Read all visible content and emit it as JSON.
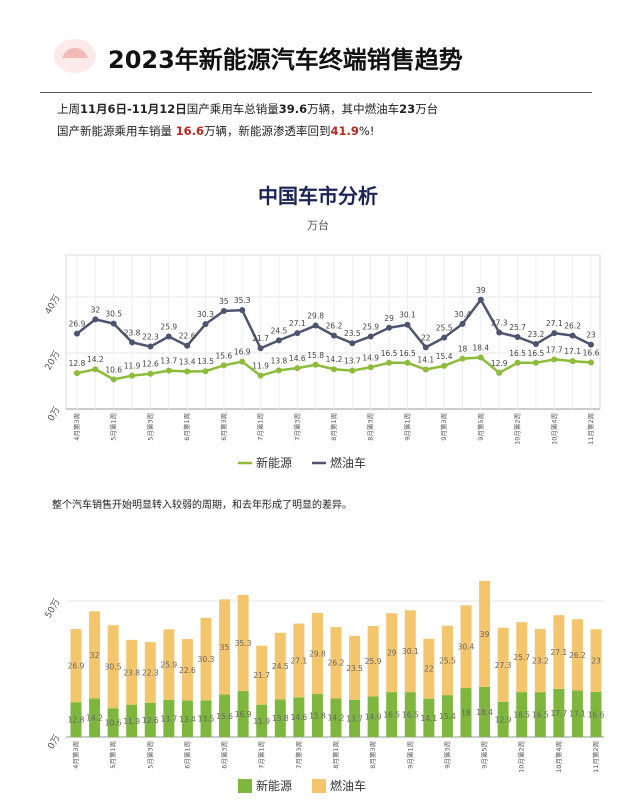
{
  "header": {
    "title": "2023年新能源汽车终端销售趋势"
  },
  "summary": {
    "line1": [
      "上周",
      "11月6日-11月12日",
      "国产乘用车总销量",
      "39.6",
      "万辆，其中燃油车",
      "23",
      "万台"
    ],
    "line2": [
      "国产新能源乘用车销量 ",
      "16.6",
      "万辆，新能源渗透率回到",
      "41.9",
      "%!"
    ]
  },
  "note": "整个汽车销售开始明显转入较弱的周期，和去年形成了明显的差异。",
  "chart_data": [
    {
      "type": "line",
      "title": "中国车市分析",
      "subtitle": "万台",
      "categories": [
        "4月第3周",
        null,
        "5月第1周",
        null,
        "5月第3周",
        null,
        "6月第1周",
        null,
        "6月第3周",
        null,
        "7月第1周",
        null,
        "7月第3周",
        null,
        "8月第1周",
        null,
        "8月第3周",
        null,
        "9月第1周",
        null,
        "9月第3周",
        null,
        "9月第5周",
        null,
        "10月第2周",
        null,
        "10月第4周",
        null,
        "11月第2周"
      ],
      "series": [
        {
          "name": "新能源",
          "color": "#8dbb3a",
          "values": [
            12.8,
            14.2,
            10.6,
            11.9,
            12.6,
            13.7,
            13.4,
            13.5,
            15.6,
            16.9,
            11.9,
            13.8,
            14.6,
            15.8,
            14.2,
            13.7,
            14.9,
            16.5,
            16.5,
            14.1,
            15.4,
            18.0,
            18.4,
            12.9,
            16.5,
            16.5,
            17.7,
            17.1,
            16.6
          ]
        },
        {
          "name": "燃油车",
          "color": "#4d5470",
          "values": [
            26.9,
            32.0,
            30.5,
            23.8,
            22.3,
            25.9,
            22.6,
            30.3,
            35.0,
            35.3,
            21.7,
            24.5,
            27.1,
            29.8,
            26.2,
            23.5,
            25.9,
            29.0,
            30.1,
            22.0,
            25.5,
            30.4,
            39.0,
            27.3,
            25.7,
            23.2,
            27.1,
            26.2,
            23.0
          ]
        }
      ],
      "ylim": [
        0,
        55
      ],
      "yticks": [
        {
          "value": 0,
          "label": "0万"
        },
        {
          "value": 20,
          "label": "20万"
        },
        {
          "value": 40,
          "label": "40万"
        }
      ],
      "grid": true,
      "legend": "bottom"
    },
    {
      "type": "bar",
      "stacked": true,
      "categories": [
        "4月第3周",
        null,
        "5月第1周",
        null,
        "5月第3周",
        null,
        "6月第1周",
        null,
        "6月第3周",
        null,
        "7月第1周",
        null,
        "7月第3周",
        null,
        "8月第1周",
        null,
        "8月第3周",
        null,
        "9月第1周",
        null,
        "9月第3周",
        null,
        "9月第5周",
        null,
        "10月第2周",
        null,
        "10月第4周",
        null,
        "11月第2周"
      ],
      "series": [
        {
          "name": "新能源",
          "color": "#7fb63d",
          "values": [
            12.8,
            14.2,
            10.6,
            11.9,
            12.6,
            13.7,
            13.4,
            13.5,
            15.6,
            16.9,
            11.9,
            13.8,
            14.6,
            15.8,
            14.2,
            13.7,
            14.9,
            16.5,
            16.5,
            14.1,
            15.4,
            18.0,
            18.4,
            12.9,
            16.5,
            16.5,
            17.7,
            17.1,
            16.6
          ]
        },
        {
          "name": "燃油车",
          "color": "#f3c66e",
          "values": [
            26.9,
            32.0,
            30.5,
            23.8,
            22.3,
            25.9,
            22.6,
            30.3,
            35.0,
            35.3,
            21.7,
            24.5,
            27.1,
            29.8,
            26.2,
            23.5,
            25.9,
            29.0,
            30.1,
            22.0,
            25.5,
            30.4,
            39.0,
            27.3,
            25.7,
            23.2,
            27.1,
            26.2,
            23.0
          ]
        }
      ],
      "ylim": [
        0,
        75
      ],
      "yticks": [
        {
          "value": 0,
          "label": "0万"
        },
        {
          "value": 50,
          "label": "50万"
        }
      ],
      "grid": true,
      "legend": "bottom"
    }
  ]
}
